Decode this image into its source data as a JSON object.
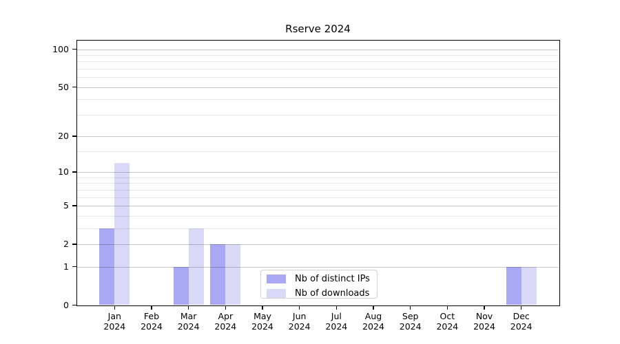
{
  "chart_data": {
    "type": "bar",
    "title": "Rserve 2024",
    "x": [
      "Jan 2024",
      "Feb 2024",
      "Mar 2024",
      "Apr 2024",
      "May 2024",
      "Jun 2024",
      "Jul 2024",
      "Aug 2024",
      "Sep 2024",
      "Oct 2024",
      "Nov 2024",
      "Dec 2024"
    ],
    "series": [
      {
        "name": "Nb of distinct IPs",
        "color": "#a8a8f5",
        "values": [
          3,
          0,
          1,
          2,
          0,
          0,
          0,
          0,
          0,
          0,
          0,
          1
        ]
      },
      {
        "name": "Nb of downloads",
        "color": "#dadaf8",
        "values": [
          12,
          0,
          3,
          2,
          0,
          0,
          0,
          0,
          0,
          0,
          0,
          1
        ]
      }
    ],
    "y_scale": "log10(value+1)",
    "y_tick_labels": [
      "100",
      "50",
      "20",
      "10",
      "5",
      "2",
      "1",
      "0"
    ],
    "y_tick_values": [
      100,
      50,
      20,
      10,
      5,
      2,
      1,
      0
    ],
    "y_minor_gridline_values": [
      90,
      80,
      70,
      60,
      40,
      30,
      15,
      9,
      8,
      7,
      6,
      4,
      3
    ],
    "ylim": [
      0,
      116
    ],
    "grid": "horizontal",
    "legend_position": "inside-bottom-center"
  },
  "colors": {
    "background": "#ffffff",
    "axis": "#000000",
    "grid_major": "rgba(0,0,0,0.22)",
    "grid_minor": "rgba(0,0,0,0.09)",
    "legend_border": "#d3d3d3",
    "text": "#000000"
  },
  "legend": {
    "items": [
      {
        "label": "Nb of distinct IPs",
        "swatch": "#a8a8f5"
      },
      {
        "label": "Nb of downloads",
        "swatch": "#dadaf8"
      }
    ]
  }
}
